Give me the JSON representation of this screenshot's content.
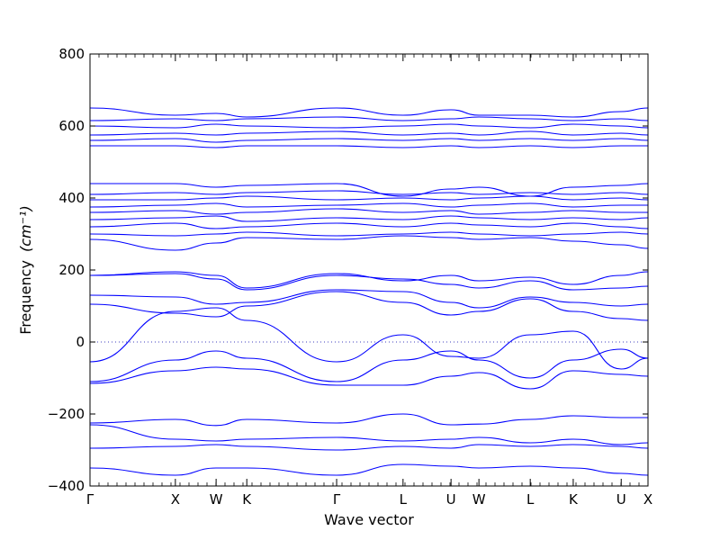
{
  "chart_data": {
    "type": "line",
    "title": "",
    "xlabel": "Wave vector",
    "ylabel_text": "Frequency",
    "ylabel_unit": "(cm⁻¹)",
    "ylim": [
      -400,
      800
    ],
    "yticks": [
      -400,
      -200,
      0,
      200,
      400,
      600,
      800
    ],
    "ytick_labels": [
      "−400",
      "−200",
      "0",
      "200",
      "400",
      "600",
      "800"
    ],
    "xlim": [
      0,
      1
    ],
    "grid": false,
    "zero_line": true,
    "line_color": "#0000ff",
    "high_symmetry_points": [
      {
        "label": "Γ",
        "x": 0.0
      },
      {
        "label": "X",
        "x": 0.153
      },
      {
        "label": "W",
        "x": 0.226
      },
      {
        "label": "K",
        "x": 0.281
      },
      {
        "label": "Γ",
        "x": 0.442
      },
      {
        "label": "L",
        "x": 0.561
      },
      {
        "label": "U",
        "x": 0.647
      },
      {
        "label": "W",
        "x": 0.697
      },
      {
        "label": "L",
        "x": 0.789
      },
      {
        "label": "K",
        "x": 0.866
      },
      {
        "label": "U",
        "x": 0.952
      },
      {
        "label": "X",
        "x": 1.0
      }
    ],
    "series": [
      {
        "x": [
          0,
          0.153,
          0.226,
          0.281,
          0.442,
          0.561,
          0.647,
          0.697,
          0.789,
          0.866,
          0.952,
          1.0
        ],
        "values": [
          -350,
          -370,
          -350,
          -350,
          -370,
          -340,
          -345,
          -350,
          -345,
          -350,
          -365,
          -370
        ]
      },
      {
        "x": [
          0,
          0.153,
          0.226,
          0.281,
          0.442,
          0.561,
          0.647,
          0.697,
          0.789,
          0.866,
          0.952,
          1.0
        ],
        "values": [
          -295,
          -290,
          -285,
          -290,
          -300,
          -290,
          -295,
          -285,
          -290,
          -285,
          -290,
          -295
        ]
      },
      {
        "x": [
          0,
          0.153,
          0.226,
          0.281,
          0.442,
          0.561,
          0.647,
          0.697,
          0.789,
          0.866,
          0.952,
          1.0
        ],
        "values": [
          -230,
          -270,
          -275,
          -270,
          -265,
          -275,
          -270,
          -265,
          -280,
          -270,
          -285,
          -280
        ]
      },
      {
        "x": [
          0,
          0.153,
          0.226,
          0.281,
          0.442,
          0.561,
          0.647,
          0.697,
          0.789,
          0.866,
          0.952,
          1.0
        ],
        "values": [
          -225,
          -215,
          -232,
          -215,
          -225,
          -200,
          -230,
          -228,
          -215,
          -205,
          -210,
          -210
        ]
      },
      {
        "x": [
          0,
          0.153,
          0.226,
          0.281,
          0.442,
          0.561,
          0.647,
          0.697,
          0.789,
          0.866,
          0.952,
          1.0
        ],
        "values": [
          -115,
          -80,
          -70,
          -75,
          -120,
          -120,
          -95,
          -85,
          -130,
          -80,
          -90,
          -95
        ]
      },
      {
        "x": [
          0,
          0.153,
          0.226,
          0.281,
          0.442,
          0.561,
          0.647,
          0.697,
          0.789,
          0.866,
          0.952,
          1.0
        ],
        "values": [
          -110,
          -50,
          -25,
          -45,
          -110,
          -50,
          -25,
          -50,
          -100,
          -50,
          -20,
          -45
        ]
      },
      {
        "x": [
          0,
          0.153,
          0.226,
          0.281,
          0.442,
          0.561,
          0.647,
          0.697,
          0.789,
          0.866,
          0.952,
          1.0
        ],
        "values": [
          -55,
          85,
          95,
          60,
          -55,
          20,
          -40,
          -45,
          20,
          30,
          -75,
          -45
        ]
      },
      {
        "x": [
          0,
          0.153,
          0.226,
          0.281,
          0.442,
          0.561,
          0.647,
          0.697,
          0.789,
          0.866,
          0.952,
          1.0
        ],
        "values": [
          105,
          80,
          70,
          100,
          140,
          110,
          75,
          85,
          120,
          85,
          65,
          60
        ]
      },
      {
        "x": [
          0,
          0.153,
          0.226,
          0.281,
          0.442,
          0.561,
          0.647,
          0.697,
          0.789,
          0.866,
          0.952,
          1.0
        ],
        "values": [
          130,
          125,
          105,
          110,
          145,
          140,
          110,
          95,
          125,
          110,
          100,
          105
        ]
      },
      {
        "x": [
          0,
          0.153,
          0.226,
          0.281,
          0.442,
          0.561,
          0.647,
          0.697,
          0.789,
          0.866,
          0.952,
          1.0
        ],
        "values": [
          185,
          190,
          175,
          145,
          185,
          175,
          160,
          150,
          170,
          145,
          150,
          155
        ]
      },
      {
        "x": [
          0,
          0.153,
          0.226,
          0.281,
          0.442,
          0.561,
          0.647,
          0.697,
          0.789,
          0.866,
          0.952,
          1.0
        ],
        "values": [
          185,
          195,
          185,
          150,
          190,
          170,
          185,
          170,
          180,
          160,
          185,
          195
        ]
      },
      {
        "x": [
          0,
          0.153,
          0.226,
          0.281,
          0.442,
          0.561,
          0.647,
          0.697,
          0.789,
          0.866,
          0.952,
          1.0
        ],
        "values": [
          285,
          255,
          275,
          290,
          285,
          295,
          290,
          285,
          290,
          280,
          270,
          260
        ]
      },
      {
        "x": [
          0,
          0.153,
          0.226,
          0.281,
          0.442,
          0.561,
          0.647,
          0.697,
          0.789,
          0.866,
          0.952,
          1.0
        ],
        "values": [
          300,
          295,
          300,
          305,
          295,
          300,
          305,
          300,
          295,
          300,
          305,
          300
        ]
      },
      {
        "x": [
          0,
          0.153,
          0.226,
          0.281,
          0.442,
          0.561,
          0.647,
          0.697,
          0.789,
          0.866,
          0.952,
          1.0
        ],
        "values": [
          320,
          330,
          315,
          320,
          330,
          320,
          330,
          325,
          320,
          330,
          320,
          315
        ]
      },
      {
        "x": [
          0,
          0.153,
          0.226,
          0.281,
          0.442,
          0.561,
          0.647,
          0.697,
          0.789,
          0.866,
          0.952,
          1.0
        ],
        "values": [
          340,
          345,
          350,
          335,
          345,
          340,
          350,
          345,
          340,
          345,
          340,
          345
        ]
      },
      {
        "x": [
          0,
          0.153,
          0.226,
          0.281,
          0.442,
          0.561,
          0.647,
          0.697,
          0.789,
          0.866,
          0.952,
          1.0
        ],
        "values": [
          360,
          365,
          355,
          360,
          370,
          360,
          365,
          355,
          360,
          365,
          360,
          360
        ]
      },
      {
        "x": [
          0,
          0.153,
          0.226,
          0.281,
          0.442,
          0.561,
          0.647,
          0.697,
          0.789,
          0.866,
          0.952,
          1.0
        ],
        "values": [
          375,
          380,
          385,
          375,
          380,
          385,
          375,
          380,
          385,
          375,
          380,
          380
        ]
      },
      {
        "x": [
          0,
          0.153,
          0.226,
          0.281,
          0.442,
          0.561,
          0.647,
          0.697,
          0.789,
          0.866,
          0.952,
          1.0
        ],
        "values": [
          395,
          395,
          400,
          405,
          395,
          400,
          395,
          400,
          405,
          395,
          400,
          395
        ]
      },
      {
        "x": [
          0,
          0.153,
          0.226,
          0.281,
          0.442,
          0.561,
          0.647,
          0.697,
          0.789,
          0.866,
          0.952,
          1.0
        ],
        "values": [
          410,
          415,
          410,
          415,
          420,
          410,
          415,
          410,
          415,
          410,
          415,
          410
        ]
      },
      {
        "x": [
          0,
          0.153,
          0.226,
          0.281,
          0.442,
          0.561,
          0.647,
          0.697,
          0.789,
          0.866,
          0.952,
          1.0
        ],
        "values": [
          440,
          440,
          430,
          435,
          440,
          405,
          425,
          430,
          405,
          430,
          435,
          440
        ]
      },
      {
        "x": [
          0,
          0.153,
          0.226,
          0.281,
          0.442,
          0.561,
          0.647,
          0.697,
          0.789,
          0.866,
          0.952,
          1.0
        ],
        "values": [
          545,
          545,
          540,
          545,
          545,
          540,
          545,
          540,
          545,
          540,
          545,
          545
        ]
      },
      {
        "x": [
          0,
          0.153,
          0.226,
          0.281,
          0.442,
          0.561,
          0.647,
          0.697,
          0.789,
          0.866,
          0.952,
          1.0
        ],
        "values": [
          560,
          565,
          555,
          560,
          565,
          560,
          565,
          560,
          565,
          560,
          565,
          560
        ]
      },
      {
        "x": [
          0,
          0.153,
          0.226,
          0.281,
          0.442,
          0.561,
          0.647,
          0.697,
          0.789,
          0.866,
          0.952,
          1.0
        ],
        "values": [
          575,
          580,
          575,
          580,
          585,
          575,
          580,
          575,
          585,
          575,
          580,
          575
        ]
      },
      {
        "x": [
          0,
          0.153,
          0.226,
          0.281,
          0.442,
          0.561,
          0.647,
          0.697,
          0.789,
          0.866,
          0.952,
          1.0
        ],
        "values": [
          600,
          595,
          605,
          600,
          595,
          600,
          605,
          600,
          595,
          605,
          600,
          595
        ]
      },
      {
        "x": [
          0,
          0.153,
          0.226,
          0.281,
          0.442,
          0.561,
          0.647,
          0.697,
          0.789,
          0.866,
          0.952,
          1.0
        ],
        "values": [
          615,
          620,
          615,
          620,
          625,
          615,
          620,
          625,
          620,
          615,
          620,
          615
        ]
      },
      {
        "x": [
          0,
          0.153,
          0.226,
          0.281,
          0.442,
          0.561,
          0.647,
          0.697,
          0.789,
          0.866,
          0.952,
          1.0
        ],
        "values": [
          650,
          630,
          635,
          625,
          650,
          630,
          645,
          630,
          630,
          625,
          640,
          650
        ]
      }
    ]
  }
}
